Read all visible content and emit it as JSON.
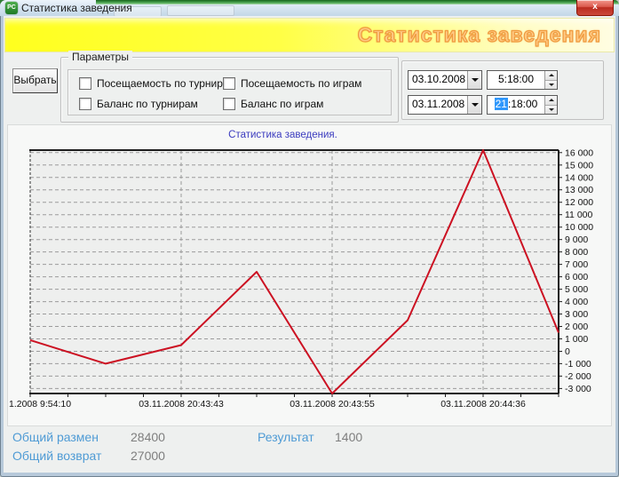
{
  "window": {
    "title": "Статистика заведения",
    "icon_text": "PC",
    "close_glyph": "x"
  },
  "banner": {
    "text": "Статистика заведения"
  },
  "toolbar": {
    "select_label": "Выбрать"
  },
  "params": {
    "title": "Параметры",
    "checkboxes": [
      {
        "label": "Посещаемость по турнирам",
        "checked": false
      },
      {
        "label": "Посещаемость по играм",
        "checked": false
      },
      {
        "label": "Баланс по турнирам",
        "checked": false
      },
      {
        "label": "Баланс по играм",
        "checked": false
      }
    ]
  },
  "daterange": {
    "from": {
      "date": "03.10.2008",
      "time": "5:18:00"
    },
    "to": {
      "date": "03.11.2008",
      "time_selected": "21",
      "time_rest": ":18:00"
    }
  },
  "chart_data": {
    "type": "line",
    "title": "Статистика заведения.",
    "values": [
      900,
      -1000,
      500,
      6400,
      -3400,
      2500,
      16200,
      1500
    ],
    "ylim": [
      -3400,
      16200
    ],
    "yticks_range": [
      -3000,
      16000
    ],
    "ytick_step": 1000,
    "x_labels": [
      "1.2008 9:54:10",
      "03.11.2008 20:43:43",
      "03.11.2008 20:43:55",
      "03.11.2008 20:44:36"
    ],
    "x_label_ticks": [
      0,
      2,
      4,
      6
    ],
    "line_color": "#cc1122",
    "grid": true,
    "legend": null
  },
  "summary": {
    "rows": [
      {
        "label": "Общий размен",
        "value": "28400"
      },
      {
        "label": "Общий возврат",
        "value": "27000"
      }
    ],
    "result": {
      "label": "Результат",
      "value": "1400"
    }
  }
}
